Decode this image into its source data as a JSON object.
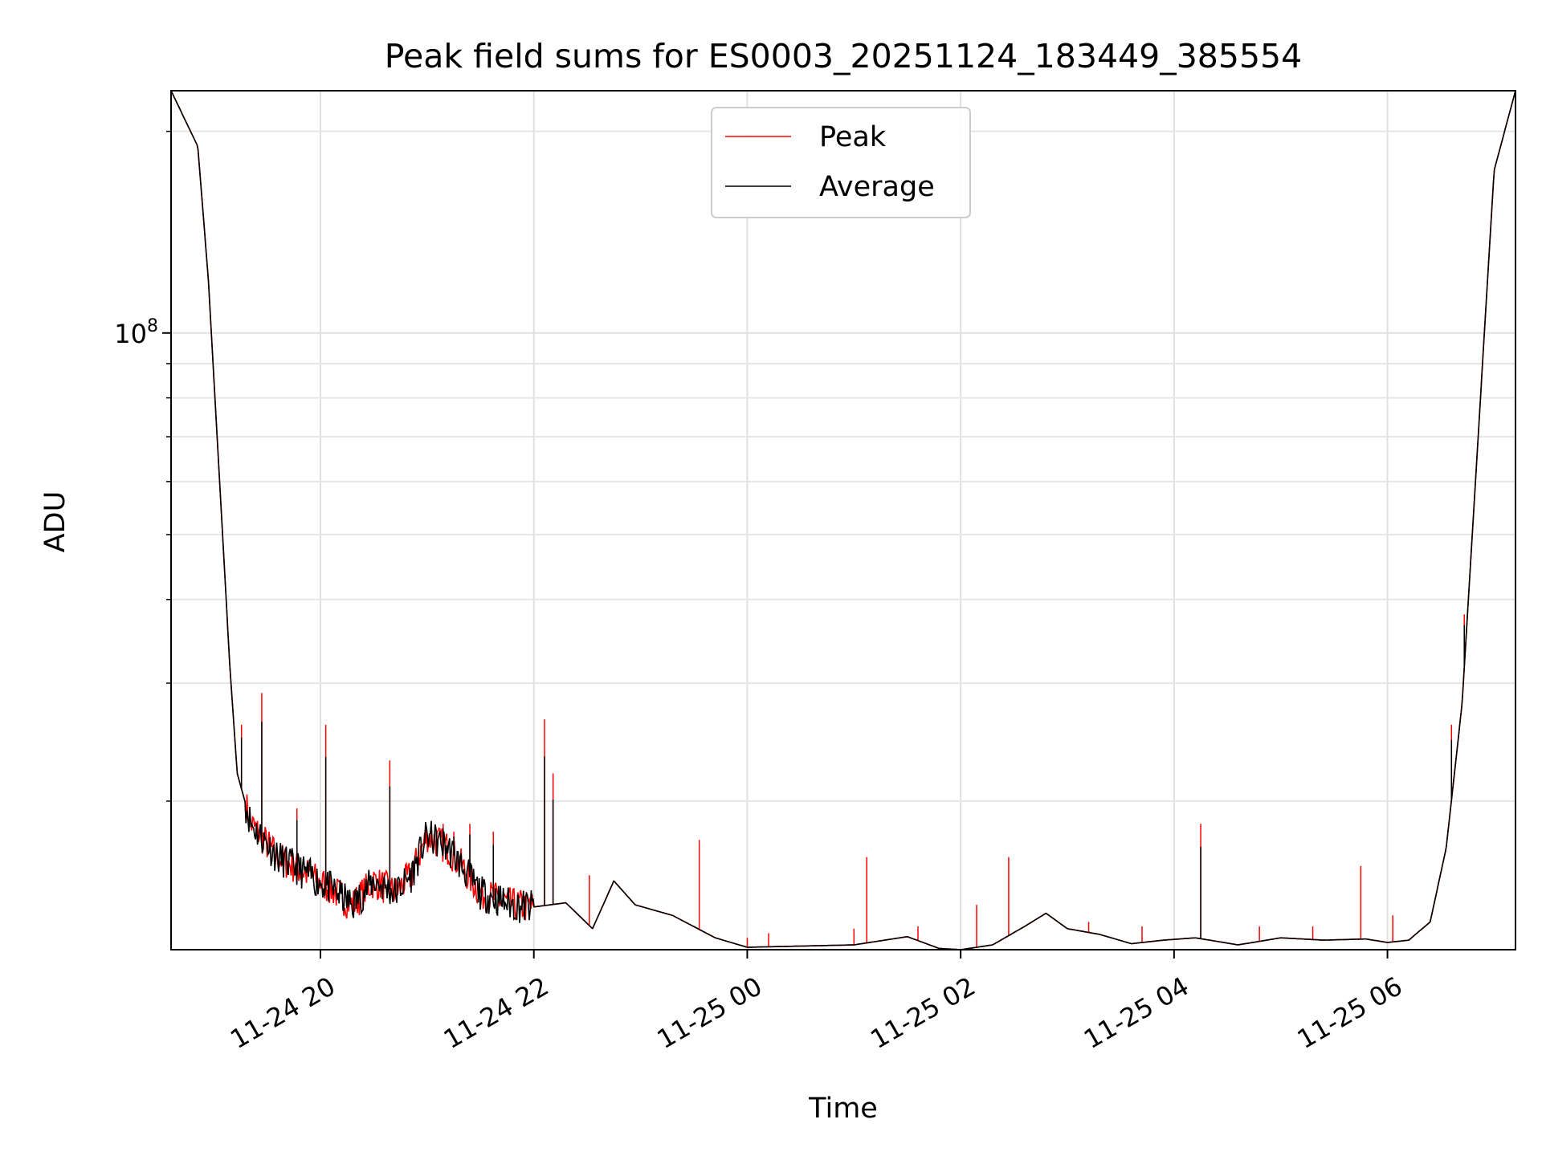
{
  "chart_data": {
    "type": "line",
    "title": "Peak field sums for ES0003_20251124_183449_385554",
    "xlabel": "Time",
    "ylabel": "ADU",
    "yscale": "log",
    "grid": true,
    "legend_position": "top-center",
    "x_unit": "hours since 11-24 18:00",
    "xlim": [
      18.6,
      31.2
    ],
    "ylim": [
      12000000,
      230000000
    ],
    "x_ticks": [
      {
        "value": 20,
        "label": "11-24 20"
      },
      {
        "value": 22,
        "label": "11-24 22"
      },
      {
        "value": 24,
        "label": "11-25 00"
      },
      {
        "value": 26,
        "label": "11-25 02"
      },
      {
        "value": 28,
        "label": "11-25 04"
      },
      {
        "value": 30,
        "label": "11-25 06"
      }
    ],
    "y_major_ticks": [
      {
        "value": 100000000,
        "base": "10",
        "exponent": "8"
      }
    ],
    "y_minor_ticks": [
      20000000,
      30000000,
      40000000,
      50000000,
      60000000,
      70000000,
      80000000,
      90000000,
      200000000
    ],
    "series": [
      {
        "name": "Average",
        "color": "#000000",
        "points": [
          [
            18.6,
            230000000
          ],
          [
            18.85,
            190000000
          ],
          [
            18.95,
            120000000
          ],
          [
            19.05,
            62000000
          ],
          [
            19.15,
            32000000
          ],
          [
            19.22,
            22000000
          ],
          [
            19.35,
            18500000
          ],
          [
            19.6,
            16500000
          ],
          [
            19.9,
            15500000
          ],
          [
            20.1,
            14800000
          ],
          [
            20.3,
            14000000
          ],
          [
            20.5,
            15200000
          ],
          [
            20.7,
            14600000
          ],
          [
            20.85,
            15500000
          ],
          [
            21.0,
            17800000
          ],
          [
            21.2,
            17000000
          ],
          [
            21.35,
            15800000
          ],
          [
            21.5,
            14600000
          ],
          [
            21.8,
            14000000
          ],
          [
            22.0,
            13900000
          ],
          [
            22.3,
            14100000
          ],
          [
            22.55,
            12900000
          ],
          [
            22.75,
            15200000
          ],
          [
            22.95,
            14000000
          ],
          [
            23.3,
            13500000
          ],
          [
            23.7,
            12500000
          ],
          [
            24.0,
            12100000
          ],
          [
            24.5,
            12150000
          ],
          [
            25.0,
            12200000
          ],
          [
            25.5,
            12550000
          ],
          [
            25.8,
            12050000
          ],
          [
            26.0,
            12000000
          ],
          [
            26.3,
            12200000
          ],
          [
            26.6,
            13000000
          ],
          [
            26.8,
            13600000
          ],
          [
            27.0,
            12900000
          ],
          [
            27.3,
            12650000
          ],
          [
            27.6,
            12250000
          ],
          [
            27.9,
            12400000
          ],
          [
            28.2,
            12500000
          ],
          [
            28.6,
            12200000
          ],
          [
            29.0,
            12500000
          ],
          [
            29.4,
            12400000
          ],
          [
            29.8,
            12450000
          ],
          [
            30.0,
            12300000
          ],
          [
            30.2,
            12400000
          ],
          [
            30.4,
            13200000
          ],
          [
            30.55,
            17000000
          ],
          [
            30.7,
            28000000
          ],
          [
            30.85,
            70000000
          ],
          [
            31.0,
            175000000
          ],
          [
            31.2,
            230000000
          ]
        ]
      },
      {
        "name": "Peak",
        "color": "#ff0000",
        "points": [
          [
            18.6,
            230000000
          ],
          [
            18.85,
            190000000
          ],
          [
            18.95,
            120000000
          ],
          [
            19.05,
            62000000
          ],
          [
            19.15,
            32000000
          ],
          [
            19.22,
            22000000
          ],
          [
            19.35,
            18500000
          ],
          [
            19.6,
            16500000
          ],
          [
            19.9,
            15500000
          ],
          [
            20.1,
            14800000
          ],
          [
            20.3,
            14000000
          ],
          [
            20.5,
            15200000
          ],
          [
            20.7,
            14600000
          ],
          [
            20.85,
            15500000
          ],
          [
            21.0,
            17800000
          ],
          [
            21.2,
            17000000
          ],
          [
            21.35,
            15800000
          ],
          [
            21.5,
            14600000
          ],
          [
            21.8,
            14000000
          ],
          [
            22.0,
            13900000
          ],
          [
            22.3,
            14100000
          ],
          [
            22.55,
            12900000
          ],
          [
            22.75,
            15200000
          ],
          [
            22.95,
            14000000
          ],
          [
            23.3,
            13500000
          ],
          [
            23.7,
            12500000
          ],
          [
            24.0,
            12100000
          ],
          [
            24.5,
            12150000
          ],
          [
            25.0,
            12200000
          ],
          [
            25.5,
            12550000
          ],
          [
            25.8,
            12050000
          ],
          [
            26.0,
            12000000
          ],
          [
            26.3,
            12200000
          ],
          [
            26.6,
            13000000
          ],
          [
            26.8,
            13600000
          ],
          [
            27.0,
            12900000
          ],
          [
            27.3,
            12650000
          ],
          [
            27.6,
            12250000
          ],
          [
            27.9,
            12400000
          ],
          [
            28.2,
            12500000
          ],
          [
            28.6,
            12200000
          ],
          [
            29.0,
            12500000
          ],
          [
            29.4,
            12400000
          ],
          [
            29.8,
            12450000
          ],
          [
            30.0,
            12300000
          ],
          [
            30.2,
            12400000
          ],
          [
            30.4,
            13200000
          ],
          [
            30.55,
            17000000
          ],
          [
            30.7,
            28000000
          ],
          [
            30.85,
            70000000
          ],
          [
            31.0,
            175000000
          ],
          [
            31.2,
            230000000
          ]
        ],
        "spikes": [
          [
            19.26,
            26000000
          ],
          [
            19.45,
            29000000
          ],
          [
            19.78,
            19500000
          ],
          [
            20.05,
            26000000
          ],
          [
            20.65,
            23000000
          ],
          [
            21.15,
            18500000
          ],
          [
            21.25,
            18000000
          ],
          [
            21.4,
            18500000
          ],
          [
            21.62,
            18000000
          ],
          [
            22.1,
            26500000
          ],
          [
            22.18,
            22000000
          ],
          [
            22.52,
            15500000
          ],
          [
            23.55,
            17500000
          ],
          [
            24.0,
            12500000
          ],
          [
            24.2,
            12700000
          ],
          [
            25.0,
            12900000
          ],
          [
            25.12,
            16500000
          ],
          [
            25.6,
            13000000
          ],
          [
            26.15,
            14000000
          ],
          [
            26.45,
            16500000
          ],
          [
            27.2,
            13200000
          ],
          [
            27.7,
            13000000
          ],
          [
            28.25,
            18500000
          ],
          [
            28.8,
            13000000
          ],
          [
            29.3,
            13000000
          ],
          [
            29.75,
            16000000
          ],
          [
            30.05,
            13500000
          ],
          [
            30.6,
            26000000
          ],
          [
            30.72,
            38000000
          ]
        ]
      }
    ]
  }
}
